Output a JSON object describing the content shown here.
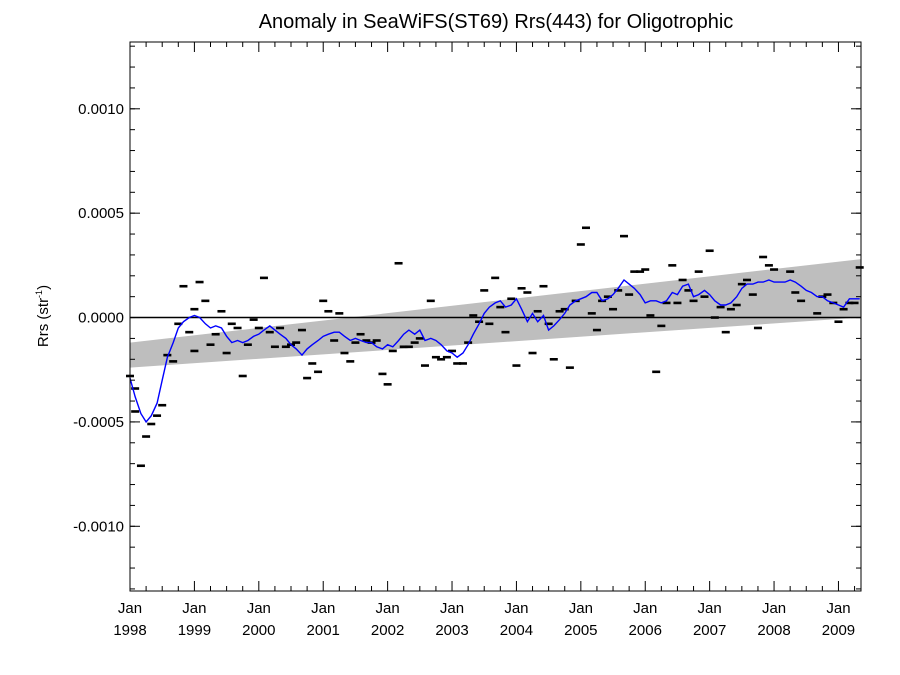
{
  "chart_data": {
    "type": "line",
    "title": "Anomaly in SeaWiFS(ST69) Rrs(443) for Oligotrophic",
    "ylabel": {
      "main": "Rrs (str",
      "sup": "-1",
      "tail": ")"
    },
    "xlabel": "",
    "ylim": [
      -0.00131,
      0.00132
    ],
    "xlim": [
      1998.0,
      2009.35
    ],
    "yticks": [
      {
        "value": 0.001,
        "label": "0.0010"
      },
      {
        "value": 0.0005,
        "label": "0.0005"
      },
      {
        "value": 0.0,
        "label": "0.0000"
      },
      {
        "value": -0.0005,
        "label": "-0.0005"
      },
      {
        "value": -0.001,
        "label": "-0.0010"
      }
    ],
    "xticks": [
      {
        "value": 1998,
        "line1": "Jan",
        "line2": "1998"
      },
      {
        "value": 1999,
        "line1": "Jan",
        "line2": "1999"
      },
      {
        "value": 2000,
        "line1": "Jan",
        "line2": "2000"
      },
      {
        "value": 2001,
        "line1": "Jan",
        "line2": "2001"
      },
      {
        "value": 2002,
        "line1": "Jan",
        "line2": "2002"
      },
      {
        "value": 2003,
        "line1": "Jan",
        "line2": "2003"
      },
      {
        "value": 2004,
        "line1": "Jan",
        "line2": "2004"
      },
      {
        "value": 2005,
        "line1": "Jan",
        "line2": "2005"
      },
      {
        "value": 2006,
        "line1": "Jan",
        "line2": "2006"
      },
      {
        "value": 2007,
        "line1": "Jan",
        "line2": "2007"
      },
      {
        "value": 2008,
        "line1": "Jan",
        "line2": "2008"
      },
      {
        "value": 2009,
        "line1": "Jan",
        "line2": "2009"
      }
    ],
    "zero_line": 0.0,
    "trend_band": {
      "color": "#bebebe",
      "upper": [
        [
          1998.0,
          -0.00012
        ],
        [
          2009.35,
          0.00028
        ]
      ],
      "lower": [
        [
          1998.0,
          -0.00024
        ],
        [
          2009.35,
          0.0
        ]
      ]
    },
    "series": [
      {
        "color": "#0000ff",
        "points": [
          [
            1998.0,
            -0.00029
          ],
          [
            1998.08,
            -0.00038
          ],
          [
            1998.17,
            -0.00046
          ],
          [
            1998.25,
            -0.0005
          ],
          [
            1998.33,
            -0.00047
          ],
          [
            1998.42,
            -0.00041
          ],
          [
            1998.5,
            -0.0003
          ],
          [
            1998.58,
            -0.00019
          ],
          [
            1998.67,
            -0.00012
          ],
          [
            1998.75,
            -5e-05
          ],
          [
            1998.83,
            -2e-05
          ],
          [
            1998.92,
            0.0
          ],
          [
            1999.0,
            1e-05
          ],
          [
            1999.08,
            0.0
          ],
          [
            1999.17,
            -3e-05
          ],
          [
            1999.25,
            -5e-05
          ],
          [
            1999.33,
            -4e-05
          ],
          [
            1999.42,
            -5e-05
          ],
          [
            1999.5,
            -9e-05
          ],
          [
            1999.58,
            -0.00012
          ],
          [
            1999.67,
            -0.00011
          ],
          [
            1999.75,
            -0.00012
          ],
          [
            1999.83,
            -0.00011
          ],
          [
            1999.92,
            -9e-05
          ],
          [
            2000.0,
            -8e-05
          ],
          [
            2000.08,
            -6e-05
          ],
          [
            2000.17,
            -4e-05
          ],
          [
            2000.25,
            -6e-05
          ],
          [
            2000.33,
            -8e-05
          ],
          [
            2000.42,
            -0.0001
          ],
          [
            2000.5,
            -0.00013
          ],
          [
            2000.58,
            -0.00015
          ],
          [
            2000.67,
            -0.00018
          ],
          [
            2000.75,
            -0.00015
          ],
          [
            2000.83,
            -0.00013
          ],
          [
            2000.92,
            -0.00011
          ],
          [
            2001.0,
            -9e-05
          ],
          [
            2001.08,
            -8e-05
          ],
          [
            2001.17,
            -7e-05
          ],
          [
            2001.25,
            -7e-05
          ],
          [
            2001.33,
            -9e-05
          ],
          [
            2001.42,
            -0.00011
          ],
          [
            2001.5,
            -0.0001
          ],
          [
            2001.58,
            -0.00011
          ],
          [
            2001.67,
            -0.00012
          ],
          [
            2001.75,
            -0.00012
          ],
          [
            2001.83,
            -0.00014
          ],
          [
            2001.92,
            -0.00015
          ],
          [
            2002.0,
            -0.00013
          ],
          [
            2002.08,
            -0.00014
          ],
          [
            2002.17,
            -0.00011
          ],
          [
            2002.25,
            -8e-05
          ],
          [
            2002.33,
            -6e-05
          ],
          [
            2002.42,
            -8e-05
          ],
          [
            2002.5,
            -6e-05
          ],
          [
            2002.58,
            -0.00011
          ],
          [
            2002.67,
            -0.0001
          ],
          [
            2002.75,
            -0.00011
          ],
          [
            2002.83,
            -0.00013
          ],
          [
            2002.92,
            -0.00016
          ],
          [
            2003.0,
            -0.00017
          ],
          [
            2003.08,
            -0.00019
          ],
          [
            2003.17,
            -0.00017
          ],
          [
            2003.25,
            -0.00013
          ],
          [
            2003.33,
            -8e-05
          ],
          [
            2003.42,
            -3e-05
          ],
          [
            2003.5,
            2e-05
          ],
          [
            2003.58,
            5e-05
          ],
          [
            2003.67,
            7e-05
          ],
          [
            2003.75,
            8e-05
          ],
          [
            2003.83,
            5e-05
          ],
          [
            2003.92,
            6e-05
          ],
          [
            2004.0,
            9e-05
          ],
          [
            2004.08,
            4e-05
          ],
          [
            2004.17,
            -2e-05
          ],
          [
            2004.25,
            2e-05
          ],
          [
            2004.33,
            -2e-05
          ],
          [
            2004.42,
            1e-05
          ],
          [
            2004.5,
            -6e-05
          ],
          [
            2004.58,
            -4e-05
          ],
          [
            2004.67,
            -1e-05
          ],
          [
            2004.75,
            2e-05
          ],
          [
            2004.83,
            6e-05
          ],
          [
            2004.92,
            8e-05
          ],
          [
            2005.0,
            9e-05
          ],
          [
            2005.08,
            0.0001
          ],
          [
            2005.17,
            0.00012
          ],
          [
            2005.25,
            0.00012
          ],
          [
            2005.33,
            8e-05
          ],
          [
            2005.42,
            9e-05
          ],
          [
            2005.5,
            0.00011
          ],
          [
            2005.58,
            0.00014
          ],
          [
            2005.67,
            0.00018
          ],
          [
            2005.75,
            0.00016
          ],
          [
            2005.83,
            0.00014
          ],
          [
            2005.92,
            0.00011
          ],
          [
            2006.0,
            7e-05
          ],
          [
            2006.08,
            8e-05
          ],
          [
            2006.17,
            8e-05
          ],
          [
            2006.25,
            7e-05
          ],
          [
            2006.33,
            8e-05
          ],
          [
            2006.42,
            0.00012
          ],
          [
            2006.5,
            0.00011
          ],
          [
            2006.58,
            0.00015
          ],
          [
            2006.67,
            0.00016
          ],
          [
            2006.75,
            0.0001
          ],
          [
            2006.83,
            0.00011
          ],
          [
            2006.92,
            0.00013
          ],
          [
            2007.0,
            0.00011
          ],
          [
            2007.08,
            8e-05
          ],
          [
            2007.17,
            6e-05
          ],
          [
            2007.25,
            6e-05
          ],
          [
            2007.33,
            7e-05
          ],
          [
            2007.42,
            0.0001
          ],
          [
            2007.5,
            0.00014
          ],
          [
            2007.58,
            0.00016
          ],
          [
            2007.67,
            0.00016
          ],
          [
            2007.75,
            0.00017
          ],
          [
            2007.83,
            0.00017
          ],
          [
            2007.92,
            0.00018
          ],
          [
            2008.0,
            0.00017
          ],
          [
            2008.08,
            0.00017
          ],
          [
            2008.17,
            0.00017
          ],
          [
            2008.25,
            0.00018
          ],
          [
            2008.33,
            0.00017
          ],
          [
            2008.42,
            0.00015
          ],
          [
            2008.5,
            0.00013
          ],
          [
            2008.58,
            0.00012
          ],
          [
            2008.67,
            0.0001
          ],
          [
            2008.75,
            0.0001
          ],
          [
            2008.83,
            8e-05
          ],
          [
            2008.92,
            7e-05
          ],
          [
            2009.0,
            6e-05
          ],
          [
            2009.08,
            5e-05
          ],
          [
            2009.17,
            9e-05
          ],
          [
            2009.25,
            9e-05
          ],
          [
            2009.33,
            9e-05
          ]
        ]
      }
    ],
    "monthly_points": [
      [
        1998.0,
        -0.00028
      ],
      [
        1998.08,
        -0.00034
      ],
      [
        1998.08,
        -0.00045
      ],
      [
        1998.17,
        -0.00071
      ],
      [
        1998.25,
        -0.00057
      ],
      [
        1998.33,
        -0.00051
      ],
      [
        1998.42,
        -0.00047
      ],
      [
        1998.5,
        -0.00042
      ],
      [
        1998.58,
        -0.00018
      ],
      [
        1998.67,
        -0.00021
      ],
      [
        1998.75,
        -3e-05
      ],
      [
        1998.83,
        0.00015
      ],
      [
        1998.92,
        -7e-05
      ],
      [
        1999.0,
        4e-05
      ],
      [
        1999.0,
        -0.00016
      ],
      [
        1999.08,
        0.00017
      ],
      [
        1999.17,
        8e-05
      ],
      [
        1999.25,
        -0.00013
      ],
      [
        1999.33,
        -8e-05
      ],
      [
        1999.42,
        3e-05
      ],
      [
        1999.5,
        -0.00017
      ],
      [
        1999.58,
        -3e-05
      ],
      [
        1999.67,
        -5e-05
      ],
      [
        1999.75,
        -0.00028
      ],
      [
        1999.83,
        -0.00013
      ],
      [
        1999.92,
        -1e-05
      ],
      [
        2000.0,
        -5e-05
      ],
      [
        2000.08,
        0.00019
      ],
      [
        2000.17,
        -7e-05
      ],
      [
        2000.25,
        -0.00014
      ],
      [
        2000.33,
        -5e-05
      ],
      [
        2000.42,
        -0.00014
      ],
      [
        2000.5,
        -0.00013
      ],
      [
        2000.58,
        -0.00012
      ],
      [
        2000.67,
        -6e-05
      ],
      [
        2000.75,
        -0.00029
      ],
      [
        2000.83,
        -0.00022
      ],
      [
        2000.92,
        -0.00026
      ],
      [
        2001.0,
        8e-05
      ],
      [
        2001.08,
        3e-05
      ],
      [
        2001.17,
        -0.00011
      ],
      [
        2001.25,
        2e-05
      ],
      [
        2001.33,
        -0.00017
      ],
      [
        2001.42,
        -0.00021
      ],
      [
        2001.5,
        -0.00012
      ],
      [
        2001.58,
        -8e-05
      ],
      [
        2001.67,
        -0.00011
      ],
      [
        2001.75,
        -0.00012
      ],
      [
        2001.83,
        -0.00011
      ],
      [
        2001.92,
        -0.00027
      ],
      [
        2002.0,
        -0.00032
      ],
      [
        2002.08,
        -0.00016
      ],
      [
        2002.17,
        0.00026
      ],
      [
        2002.25,
        -0.00014
      ],
      [
        2002.33,
        -0.00014
      ],
      [
        2002.42,
        -0.00012
      ],
      [
        2002.5,
        -0.0001
      ],
      [
        2002.58,
        -0.00023
      ],
      [
        2002.67,
        8e-05
      ],
      [
        2002.75,
        -0.00019
      ],
      [
        2002.83,
        -0.0002
      ],
      [
        2002.92,
        -0.00019
      ],
      [
        2003.0,
        -0.00016
      ],
      [
        2003.08,
        -0.00022
      ],
      [
        2003.17,
        -0.00022
      ],
      [
        2003.25,
        -0.00012
      ],
      [
        2003.33,
        1e-05
      ],
      [
        2003.42,
        -2e-05
      ],
      [
        2003.5,
        0.00013
      ],
      [
        2003.58,
        -3e-05
      ],
      [
        2003.67,
        0.00019
      ],
      [
        2003.75,
        5e-05
      ],
      [
        2003.83,
        -7e-05
      ],
      [
        2003.92,
        9e-05
      ],
      [
        2004.0,
        -0.00023
      ],
      [
        2004.08,
        0.00014
      ],
      [
        2004.17,
        0.00012
      ],
      [
        2004.25,
        -0.00017
      ],
      [
        2004.33,
        3e-05
      ],
      [
        2004.42,
        0.00015
      ],
      [
        2004.5,
        -3e-05
      ],
      [
        2004.58,
        -0.0002
      ],
      [
        2004.67,
        3e-05
      ],
      [
        2004.75,
        4e-05
      ],
      [
        2004.83,
        -0.00024
      ],
      [
        2004.92,
        8e-05
      ],
      [
        2005.0,
        0.00035
      ],
      [
        2005.08,
        0.00043
      ],
      [
        2005.17,
        2e-05
      ],
      [
        2005.25,
        -6e-05
      ],
      [
        2005.33,
        8e-05
      ],
      [
        2005.42,
        0.0001
      ],
      [
        2005.5,
        4e-05
      ],
      [
        2005.58,
        0.00013
      ],
      [
        2005.67,
        0.00039
      ],
      [
        2005.75,
        0.00011
      ],
      [
        2005.83,
        0.00022
      ],
      [
        2005.92,
        0.00022
      ],
      [
        2006.0,
        0.00023
      ],
      [
        2006.08,
        1e-05
      ],
      [
        2006.17,
        -0.00026
      ],
      [
        2006.25,
        -4e-05
      ],
      [
        2006.33,
        7e-05
      ],
      [
        2006.42,
        0.00025
      ],
      [
        2006.5,
        7e-05
      ],
      [
        2006.58,
        0.00018
      ],
      [
        2006.67,
        0.00013
      ],
      [
        2006.75,
        8e-05
      ],
      [
        2006.83,
        0.00022
      ],
      [
        2006.92,
        0.0001
      ],
      [
        2007.0,
        0.00032
      ],
      [
        2007.08,
        0.0
      ],
      [
        2007.17,
        5e-05
      ],
      [
        2007.25,
        -7e-05
      ],
      [
        2007.33,
        4e-05
      ],
      [
        2007.42,
        6e-05
      ],
      [
        2007.5,
        0.00016
      ],
      [
        2007.58,
        0.00018
      ],
      [
        2007.67,
        0.00011
      ],
      [
        2007.75,
        -5e-05
      ],
      [
        2007.83,
        0.00029
      ],
      [
        2007.92,
        0.00025
      ],
      [
        2008.0,
        0.00023
      ],
      [
        2008.25,
        0.00022
      ],
      [
        2008.33,
        0.00012
      ],
      [
        2008.42,
        8e-05
      ],
      [
        2008.67,
        2e-05
      ],
      [
        2008.75,
        0.0001
      ],
      [
        2008.83,
        0.00011
      ],
      [
        2008.92,
        7e-05
      ],
      [
        2009.0,
        -2e-05
      ],
      [
        2009.08,
        4e-05
      ],
      [
        2009.17,
        7e-05
      ],
      [
        2009.25,
        7e-05
      ],
      [
        2009.33,
        0.00024
      ]
    ]
  }
}
